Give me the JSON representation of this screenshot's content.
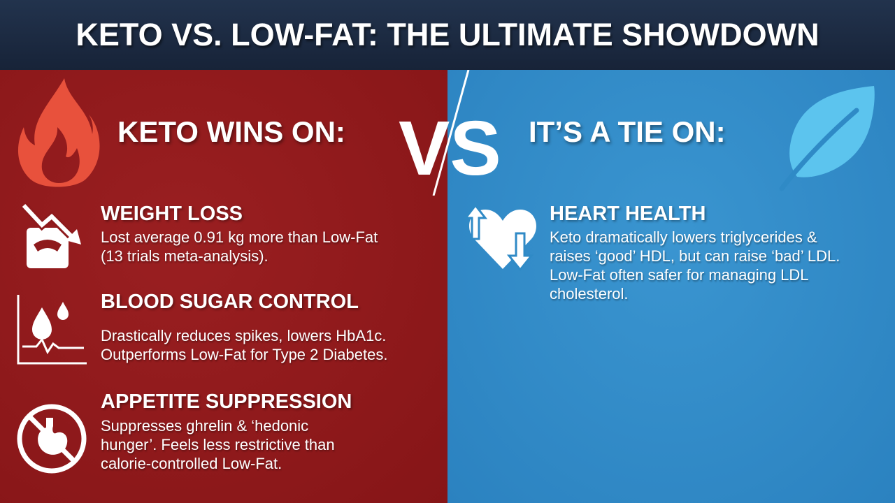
{
  "title": "KETO VS. LOW-FAT: THE ULTIMATE SHOWDOWN",
  "vs_label": "VS",
  "colors": {
    "header": "#1d2c44",
    "keto_panel": "#8e1a1c",
    "tie_panel": "#2f8ac6",
    "flame": "#e8513c",
    "leaf": "#5cc4ee"
  },
  "keto": {
    "heading": "KETO WINS ON:",
    "icon": "flame-icon",
    "items": [
      {
        "icon": "scale-down-arrow-icon",
        "title": "WEIGHT LOSS",
        "body": "Lost average 0.91 kg more than Low-Fat\n(13 trials meta-analysis)."
      },
      {
        "icon": "blood-drop-chart-icon",
        "title": "BLOOD SUGAR CONTROL",
        "body": "Drastically reduces spikes, lowers HbA1c.\nOutperforms Low-Fat for Type 2 Diabetes."
      },
      {
        "icon": "no-stomach-icon",
        "title": "APPETITE SUPPRESSION",
        "body": "Suppresses ghrelin & ‘hedonic\nhunger’. Feels less restrictive than\ncalorie-controlled Low-Fat."
      }
    ]
  },
  "tie": {
    "heading": "IT’S A TIE ON:",
    "icon": "leaf-icon",
    "items": [
      {
        "icon": "heart-up-down-arrows-icon",
        "title": "HEART HEALTH",
        "body": "Keto dramatically lowers triglycerides &\nraises ‘good’ HDL, but can raise ‘bad’ LDL.\nLow-Fat often safer for managing LDL\ncholesterol."
      }
    ]
  }
}
